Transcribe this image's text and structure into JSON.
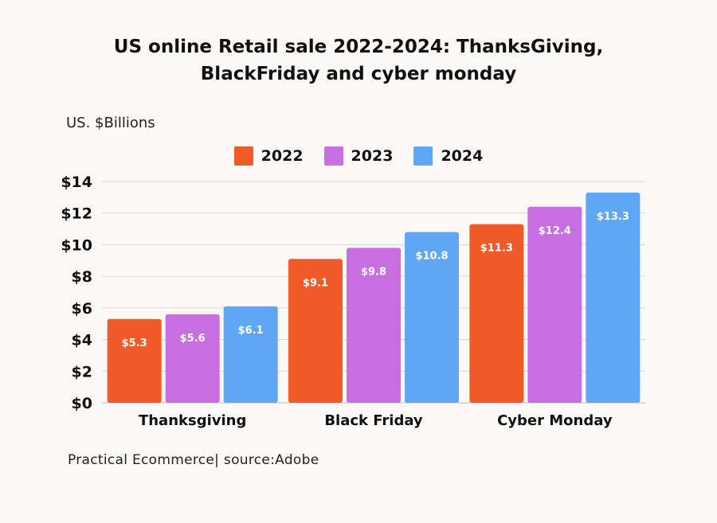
{
  "chart_data": {
    "type": "bar",
    "title_line1": "US online Retail sale 2022-2024: ThanksGiving,",
    "title_line2": "BlackFriday and cyber monday",
    "ylabel": "US. $Billions",
    "source": "Practical Ecommerce| source:Adobe",
    "categories": [
      "Thanksgiving",
      "Black Friday",
      "Cyber Monday"
    ],
    "series": [
      {
        "name": "2022",
        "color": "#f05a28",
        "values": [
          5.3,
          9.1,
          11.3
        ],
        "labels": [
          "$5.3",
          "$9.1",
          "$11.3"
        ]
      },
      {
        "name": "2023",
        "color": "#c86ee0",
        "values": [
          5.6,
          9.8,
          12.4
        ],
        "labels": [
          "$5.6",
          "$9.8",
          "$12.4"
        ]
      },
      {
        "name": "2024",
        "color": "#5fa6f5",
        "values": [
          6.1,
          10.8,
          13.3
        ],
        "labels": [
          "$6.1",
          "$10.8",
          "$13.3"
        ]
      }
    ],
    "ylim": [
      0,
      14
    ],
    "yticks": [
      0,
      2,
      4,
      6,
      8,
      10,
      12,
      14
    ],
    "ytick_labels": [
      "$0",
      "$2",
      "$4",
      "$6",
      "$8",
      "$10",
      "$12",
      "$14"
    ],
    "grid": true,
    "legend_position": "top-center"
  }
}
